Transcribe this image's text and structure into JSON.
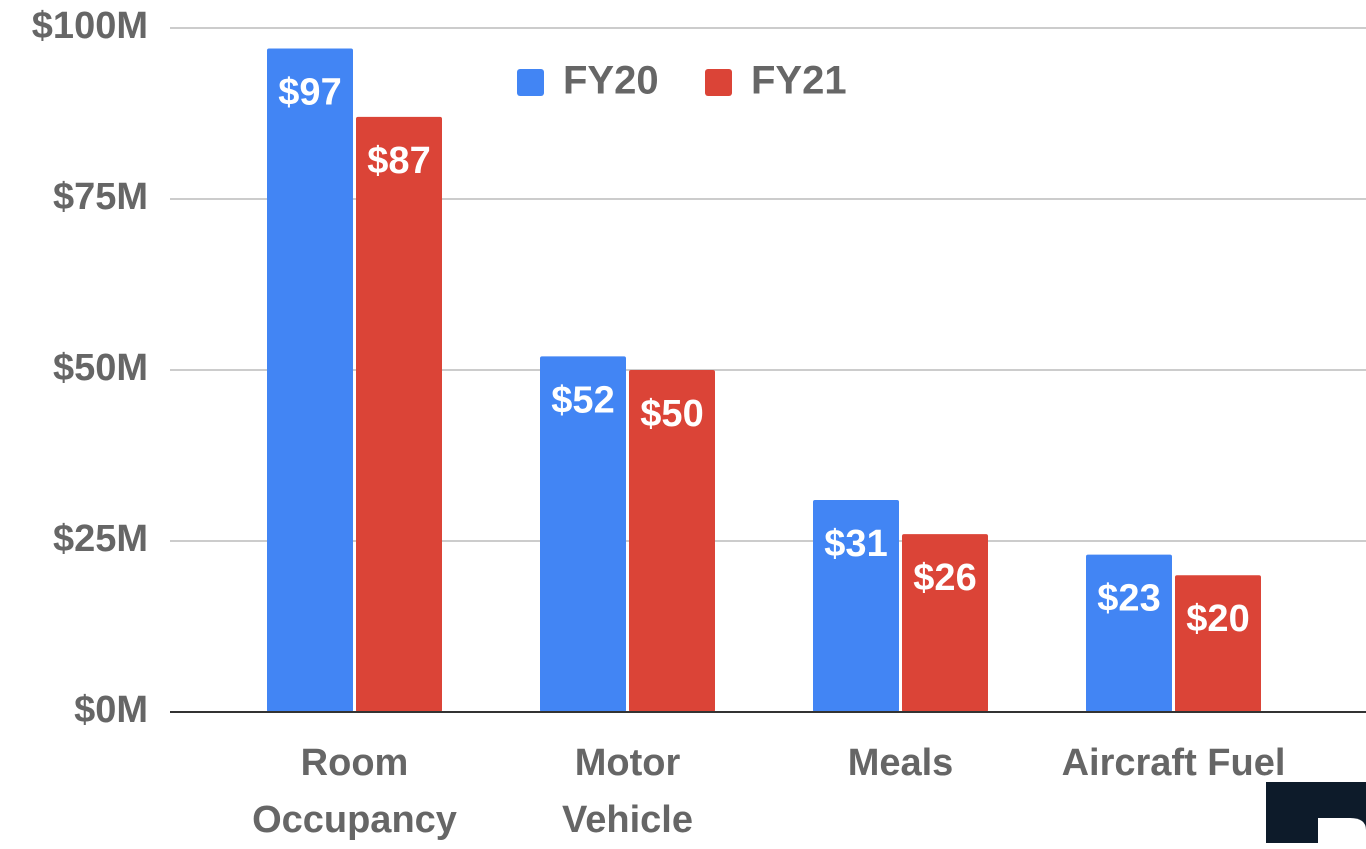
{
  "chart_data": {
    "type": "bar",
    "categories": [
      "Room\nOccupancy",
      "Motor\nVehicle",
      "Meals",
      "Aircraft Fuel"
    ],
    "series": [
      {
        "name": "FY20",
        "color": "#4285f4",
        "values": [
          97,
          52,
          31,
          23
        ],
        "value_labels": [
          "$97",
          "$52",
          "$31",
          "$23"
        ]
      },
      {
        "name": "FY21",
        "color": "#db4437",
        "values": [
          87,
          50,
          26,
          20
        ],
        "value_labels": [
          "$87",
          "$50",
          "$26",
          "$20"
        ]
      }
    ],
    "ylim": [
      0,
      100
    ],
    "yticks": [
      {
        "value": 0,
        "label": "$0M"
      },
      {
        "value": 25,
        "label": "$25M"
      },
      {
        "value": 50,
        "label": "$50M"
      },
      {
        "value": 75,
        "label": "$75M"
      },
      {
        "value": 100,
        "label": "$100M"
      }
    ],
    "grid": true,
    "legend": "top"
  }
}
